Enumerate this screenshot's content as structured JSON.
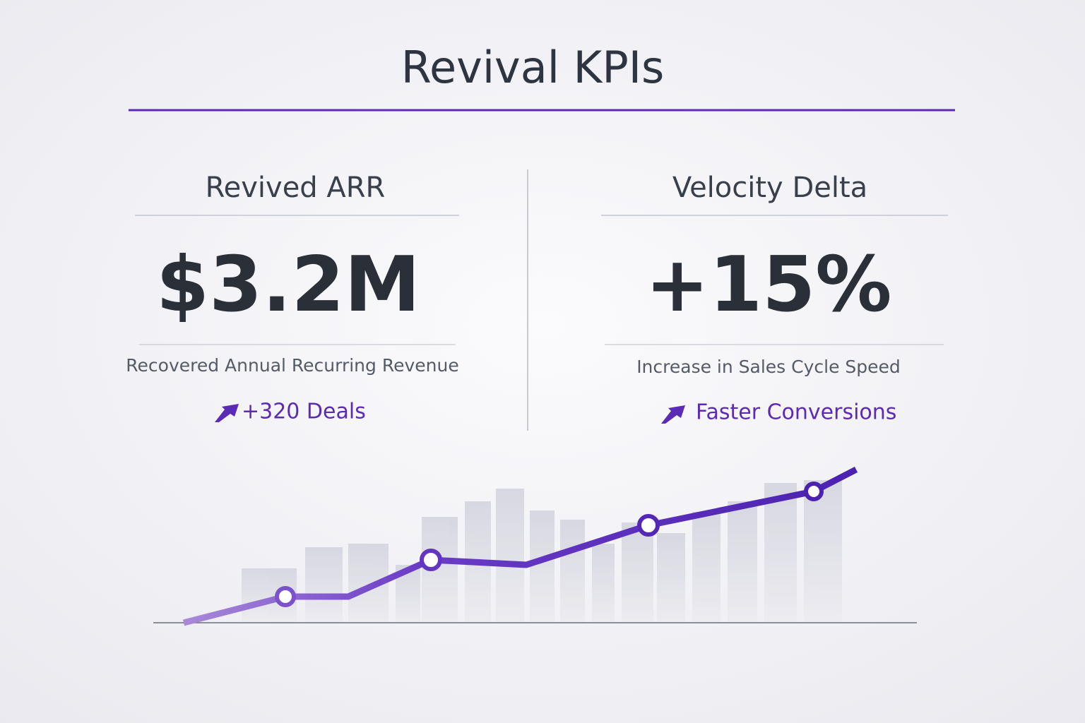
{
  "header": {
    "title": "Revival KPIs"
  },
  "kpis": [
    {
      "label": "Revived ARR",
      "value": "$3.2M",
      "description": "Recovered Annual Recurring Revenue",
      "badge": "+320 Deals"
    },
    {
      "label": "Velocity Delta",
      "value": "+15%",
      "description": "Increase in Sales Cycle Speed",
      "badge": "Faster Conversions"
    }
  ]
}
